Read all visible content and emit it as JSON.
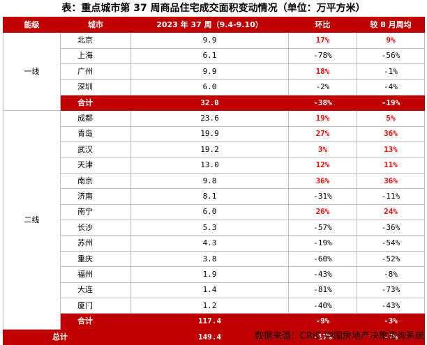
{
  "title": "表：重点城市第 37 周商品住宅成交面积变动情况（单位：万平方米）",
  "headers": [
    "能级",
    "城市",
    "2023 年 37 周（9.4-9.10）",
    "环比",
    "较 8 月周均"
  ],
  "tier1": {
    "label": "一线",
    "rows": [
      {
        "city": "北京",
        "value": "9.9",
        "mom": "17%",
        "vs_aug": "9%"
      },
      {
        "city": "上海",
        "value": "6.1",
        "mom": "-78%",
        "vs_aug": "-56%"
      },
      {
        "city": "广州",
        "value": "9.9",
        "mom": "18%",
        "vs_aug": "-1%"
      },
      {
        "city": "深圳",
        "value": "6.0",
        "mom": "-2%",
        "vs_aug": "-4%"
      }
    ],
    "subtotal": {
      "label": "合计",
      "value": "32.0",
      "mom": "-38%",
      "vs_aug": "-19%"
    }
  },
  "tier2": {
    "label": "二线",
    "rows": [
      {
        "city": "成都",
        "value": "23.6",
        "mom": "19%",
        "vs_aug": "5%"
      },
      {
        "city": "青岛",
        "value": "19.9",
        "mom": "27%",
        "vs_aug": "36%"
      },
      {
        "city": "武汉",
        "value": "19.2",
        "mom": "3%",
        "vs_aug": "13%"
      },
      {
        "city": "天津",
        "value": "13.0",
        "mom": "12%",
        "vs_aug": "11%"
      },
      {
        "city": "南京",
        "value": "9.8",
        "mom": "36%",
        "vs_aug": "36%"
      },
      {
        "city": "济南",
        "value": "8.1",
        "mom": "-31%",
        "vs_aug": "-11%"
      },
      {
        "city": "南宁",
        "value": "6.0",
        "mom": "26%",
        "vs_aug": "24%"
      },
      {
        "city": "长沙",
        "value": "5.3",
        "mom": "-57%",
        "vs_aug": "-36%"
      },
      {
        "city": "苏州",
        "value": "4.3",
        "mom": "-19%",
        "vs_aug": "-54%"
      },
      {
        "city": "重庆",
        "value": "3.8",
        "mom": "-60%",
        "vs_aug": "-52%"
      },
      {
        "city": "福州",
        "value": "1.9",
        "mom": "-43%",
        "vs_aug": "-8%"
      },
      {
        "city": "大连",
        "value": "1.4",
        "mom": "-81%",
        "vs_aug": "-73%"
      },
      {
        "city": "厦门",
        "value": "1.2",
        "mom": "-40%",
        "vs_aug": "-43%"
      }
    ],
    "subtotal": {
      "label": "合计",
      "value": "117.4",
      "mom": "-9%",
      "vs_aug": "-3%"
    }
  },
  "total": {
    "label": "总计",
    "value": "149.4",
    "mom": "-17%",
    "vs_aug": "-7%"
  },
  "source": "数据来源：CRIC 中国房地产决策咨询系统",
  "colors": {
    "header_bg": "#c00000",
    "positive": "#ff0000",
    "negative": "#000000"
  }
}
